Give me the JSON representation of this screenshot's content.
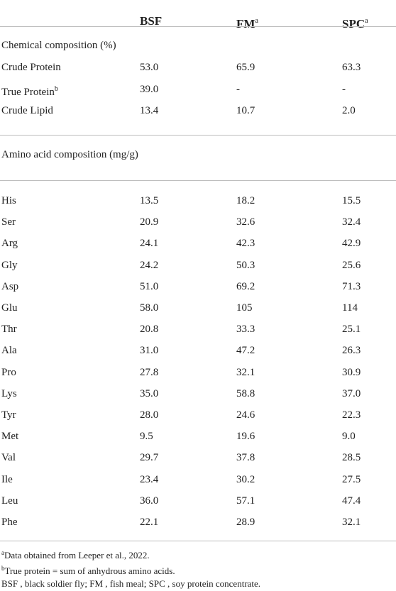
{
  "header": {
    "col_bsf": "BSF",
    "col_fm": "FM",
    "col_fm_sup": "a",
    "col_spc": "SPC",
    "col_spc_sup": "a"
  },
  "section_chemical": {
    "title": "Chemical composition (%)",
    "rows": [
      {
        "label": "Crude Protein",
        "sup": "",
        "bsf": "53.0",
        "fm": "65.9",
        "spc": "63.3"
      },
      {
        "label": "True Protein",
        "sup": "b",
        "bsf": "39.0",
        "fm": "-",
        "spc": "-"
      },
      {
        "label": "Crude Lipid",
        "sup": "",
        "bsf": "13.4",
        "fm": "10.7",
        "spc": "2.0"
      }
    ]
  },
  "section_amino": {
    "title": "Amino acid composition (mg/g)",
    "rows": [
      {
        "label": "His",
        "bsf": "13.5",
        "fm": "18.2",
        "spc": "15.5"
      },
      {
        "label": "Ser",
        "bsf": "20.9",
        "fm": "32.6",
        "spc": "32.4"
      },
      {
        "label": "Arg",
        "bsf": "24.1",
        "fm": "42.3",
        "spc": "42.9"
      },
      {
        "label": "Gly",
        "bsf": "24.2",
        "fm": "50.3",
        "spc": "25.6"
      },
      {
        "label": "Asp",
        "bsf": "51.0",
        "fm": "69.2",
        "spc": "71.3"
      },
      {
        "label": "Glu",
        "bsf": "58.0",
        "fm": "105",
        "spc": "114"
      },
      {
        "label": "Thr",
        "bsf": "20.8",
        "fm": "33.3",
        "spc": "25.1"
      },
      {
        "label": "Ala",
        "bsf": "31.0",
        "fm": "47.2",
        "spc": "26.3"
      },
      {
        "label": "Pro",
        "bsf": "27.8",
        "fm": "32.1",
        "spc": "30.9"
      },
      {
        "label": "Lys",
        "bsf": "35.0",
        "fm": "58.8",
        "spc": "37.0"
      },
      {
        "label": "Tyr",
        "bsf": "28.0",
        "fm": "24.6",
        "spc": "22.3"
      },
      {
        "label": "Met",
        "bsf": "9.5",
        "fm": "19.6",
        "spc": "9.0"
      },
      {
        "label": "Val",
        "bsf": "29.7",
        "fm": "37.8",
        "spc": "28.5"
      },
      {
        "label": "Ile",
        "bsf": "23.4",
        "fm": "30.2",
        "spc": "27.5"
      },
      {
        "label": "Leu",
        "bsf": "36.0",
        "fm": "57.1",
        "spc": "47.4"
      },
      {
        "label": "Phe",
        "bsf": "22.1",
        "fm": "28.9",
        "spc": "32.1"
      }
    ]
  },
  "footnotes": {
    "a_sup": "a",
    "a_text": "Data obtained from Leeper et al., 2022.",
    "b_sup": "b",
    "b_text": "True protein = sum of anhydrous amino acids.",
    "abbrev": "BSF , black soldier fly; FM , fish meal; SPC , soy protein concentrate."
  }
}
